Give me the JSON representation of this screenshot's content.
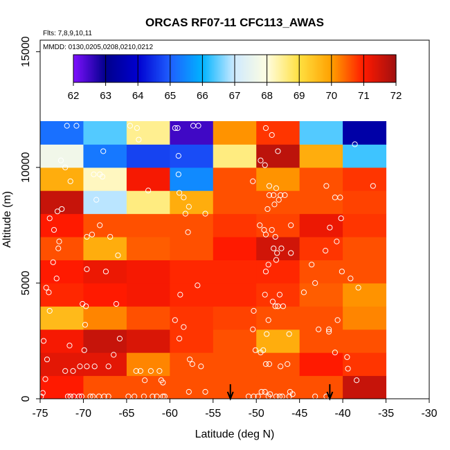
{
  "chart_data": {
    "type": "heatmap",
    "title": "ORCAS RF07-11 CFC113_AWAS",
    "flights_label": "Flts: 7,8,9,10,11",
    "dates_label": "MMDD: 0130,0205,0208,0210,0212",
    "xlabel": "Latitude (deg N)",
    "ylabel": "Altitude (m)",
    "xlim": [
      -75,
      -30
    ],
    "ylim": [
      0,
      15500
    ],
    "x_ticks": [
      -75,
      -70,
      -65,
      -60,
      -55,
      -50,
      -45,
      -40,
      -35,
      -30
    ],
    "x_tick_labels": [
      "-75",
      "-70",
      "-65",
      "-60",
      "-55",
      "-50",
      "-45",
      "-40",
      "-35",
      "-30"
    ],
    "y_ticks": [
      0,
      5000,
      10000,
      15000
    ],
    "y_tick_labels": [
      "0",
      "5000",
      "10000",
      "15000"
    ],
    "colorbar": {
      "min": 62,
      "max": 72,
      "ticks": [
        62,
        63,
        64,
        65,
        66,
        67,
        68,
        69,
        70,
        71,
        72
      ],
      "tick_labels": [
        "62",
        "63",
        "64",
        "65",
        "66",
        "67",
        "68",
        "69",
        "70",
        "71",
        "72"
      ],
      "stops": [
        "#7f10ff",
        "#00008b",
        "#0000d0",
        "#1f5fff",
        "#00b4ff",
        "#cfeaff",
        "#fffde0",
        "#ffe040",
        "#ffa000",
        "#ff1a00",
        "#a01010"
      ]
    },
    "lat_bins": [
      -75,
      -70,
      -65,
      -60,
      -55,
      -50,
      -45,
      -40,
      -35
    ],
    "alt_bins": [
      0,
      1000,
      2000,
      3000,
      4000,
      5000,
      6000,
      7000,
      8000,
      9000,
      10000,
      11000,
      12000
    ],
    "grid_values": [
      [
        71.0,
        70.6,
        70.6,
        70.6,
        70.6,
        70.6,
        70.6,
        71.6
      ],
      [
        71.3,
        71.3,
        70.2,
        70.6,
        70.6,
        70.6,
        71.0,
        70.8
      ],
      [
        71.1,
        71.6,
        71.4,
        70.8,
        70.6,
        69.8,
        70.6,
        70.6
      ],
      [
        69.6,
        70.2,
        70.6,
        70.8,
        70.7,
        70.6,
        70.6,
        70.2
      ],
      [
        70.9,
        71.0,
        71.1,
        70.9,
        70.9,
        70.8,
        70.5,
        70.1
      ],
      [
        71.0,
        71.2,
        71.1,
        70.9,
        70.9,
        70.9,
        70.6,
        70.6
      ],
      [
        70.6,
        69.8,
        70.5,
        70.6,
        71.0,
        71.5,
        70.8,
        70.6
      ],
      [
        71.0,
        70.6,
        70.6,
        70.6,
        70.8,
        70.7,
        71.2,
        70.8
      ],
      [
        71.6,
        66.9,
        68.6,
        69.8,
        70.6,
        70.6,
        70.6,
        70.7
      ],
      [
        69.8,
        68.2,
        71.1,
        65.5,
        70.6,
        70.1,
        70.6,
        70.8
      ],
      [
        67.7,
        65.3,
        64.7,
        64.8,
        68.6,
        71.7,
        69.8,
        66.3
      ],
      [
        65.2,
        66.4,
        68.5,
        62.5,
        70.1,
        70.8,
        66.4,
        63.4
      ]
    ],
    "observations": [
      [
        -74.9,
        100
      ],
      [
        -74.7,
        250
      ],
      [
        -74.4,
        850
      ],
      [
        -74.2,
        1700
      ],
      [
        -74.6,
        2500
      ],
      [
        -73.9,
        3800
      ],
      [
        -74.0,
        4600
      ],
      [
        -74.3,
        4800
      ],
      [
        -73.1,
        5200
      ],
      [
        -73.5,
        5900
      ],
      [
        -72.9,
        6500
      ],
      [
        -73.4,
        7300
      ],
      [
        -72.8,
        6800
      ],
      [
        -73.9,
        7800
      ],
      [
        -72.5,
        8200
      ],
      [
        -73.0,
        8100
      ],
      [
        -71.5,
        9400
      ],
      [
        -72.1,
        10000
      ],
      [
        -72.6,
        10300
      ],
      [
        -70.8,
        11800
      ],
      [
        -71.9,
        11800
      ],
      [
        -71.5,
        100
      ],
      [
        -71.8,
        100
      ],
      [
        -71.1,
        100
      ],
      [
        -70.5,
        100
      ],
      [
        -70.2,
        100
      ],
      [
        -69.2,
        100
      ],
      [
        -68.9,
        100
      ],
      [
        -68.2,
        100
      ],
      [
        -67.6,
        100
      ],
      [
        -67.1,
        100
      ],
      [
        -72.1,
        1200
      ],
      [
        -71.2,
        1200
      ],
      [
        -70.4,
        1400
      ],
      [
        -69.6,
        1400
      ],
      [
        -68.7,
        1400
      ],
      [
        -67.1,
        1400
      ],
      [
        -66.5,
        1900
      ],
      [
        -71.6,
        2300
      ],
      [
        -69.9,
        2100
      ],
      [
        -65.8,
        2600
      ],
      [
        -69.8,
        3200
      ],
      [
        -70.1,
        4100
      ],
      [
        -69.7,
        4000
      ],
      [
        -66.2,
        4100
      ],
      [
        -67.4,
        5500
      ],
      [
        -69.6,
        5600
      ],
      [
        -66.9,
        7000
      ],
      [
        -69.6,
        7000
      ],
      [
        -68.1,
        7500
      ],
      [
        -69.0,
        7100
      ],
      [
        -66.0,
        6200
      ],
      [
        -67.8,
        9600
      ],
      [
        -68.8,
        9700
      ],
      [
        -68.1,
        9700
      ],
      [
        -68.5,
        8600
      ],
      [
        -67.7,
        10700
      ],
      [
        -64.8,
        100
      ],
      [
        -64.1,
        100
      ],
      [
        -63.0,
        100
      ],
      [
        -62.0,
        100
      ],
      [
        -61.5,
        100
      ],
      [
        -60.8,
        100
      ],
      [
        -60.6,
        100
      ],
      [
        -63.4,
        1200
      ],
      [
        -63.9,
        1200
      ],
      [
        -61.2,
        1200
      ],
      [
        -62.2,
        1200
      ],
      [
        -62.9,
        800
      ],
      [
        -61.0,
        800
      ],
      [
        -60.8,
        700
      ],
      [
        -62.5,
        9000
      ],
      [
        -64.6,
        11800
      ],
      [
        -63.8,
        11700
      ],
      [
        -63.6,
        11200
      ],
      [
        -59.4,
        3400
      ],
      [
        -58.4,
        3100
      ],
      [
        -58.9,
        2600
      ],
      [
        -57.7,
        1700
      ],
      [
        -57.4,
        1500
      ],
      [
        -56.4,
        1400
      ],
      [
        -58.8,
        4500
      ],
      [
        -56.8,
        4900
      ],
      [
        -57.9,
        7200
      ],
      [
        -58.2,
        8000
      ],
      [
        -58.4,
        8700
      ],
      [
        -58.9,
        8900
      ],
      [
        -57.8,
        8300
      ],
      [
        -59.0,
        9700
      ],
      [
        -59.0,
        10500
      ],
      [
        -59.4,
        11700
      ],
      [
        -59.1,
        11700
      ],
      [
        -57.3,
        11800
      ],
      [
        -56.7,
        11800
      ],
      [
        -55.9,
        8000
      ],
      [
        -57.8,
        300
      ],
      [
        -55.9,
        300
      ],
      [
        -50.9,
        100
      ],
      [
        -50.3,
        100
      ],
      [
        -49.8,
        100
      ],
      [
        -49.4,
        300
      ],
      [
        -49.0,
        300
      ],
      [
        -48.6,
        100
      ],
      [
        -48.4,
        200
      ],
      [
        -47.7,
        100
      ],
      [
        -47.3,
        100
      ],
      [
        -47.0,
        100
      ],
      [
        -46.2,
        100
      ],
      [
        -46.1,
        300
      ],
      [
        -45.8,
        200
      ],
      [
        -50.1,
        2100
      ],
      [
        -49.2,
        2100
      ],
      [
        -49.5,
        2000
      ],
      [
        -48.9,
        1500
      ],
      [
        -48.5,
        1500
      ],
      [
        -47.2,
        1400
      ],
      [
        -46.4,
        1500
      ],
      [
        -48.8,
        2800
      ],
      [
        -46.2,
        2800
      ],
      [
        -50.4,
        3000
      ],
      [
        -48.6,
        3400
      ],
      [
        -50.3,
        3800
      ],
      [
        -48.1,
        4200
      ],
      [
        -47.8,
        4000
      ],
      [
        -47.5,
        4000
      ],
      [
        -46.9,
        4000
      ],
      [
        -49.0,
        4500
      ],
      [
        -47.3,
        4500
      ],
      [
        -48.6,
        5800
      ],
      [
        -48.9,
        5500
      ],
      [
        -47.7,
        6000
      ],
      [
        -47.6,
        6300
      ],
      [
        -48.0,
        6500
      ],
      [
        -47.1,
        6500
      ],
      [
        -49.6,
        7500
      ],
      [
        -49.1,
        7300
      ],
      [
        -48.9,
        7100
      ],
      [
        -47.8,
        7000
      ],
      [
        -48.2,
        7300
      ],
      [
        -46.0,
        7500
      ],
      [
        -46.0,
        6300
      ],
      [
        -48.7,
        8200
      ],
      [
        -47.9,
        8400
      ],
      [
        -47.4,
        8600
      ],
      [
        -48.5,
        8800
      ],
      [
        -48.0,
        8800
      ],
      [
        -47.2,
        8800
      ],
      [
        -46.7,
        8800
      ],
      [
        -50.4,
        9400
      ],
      [
        -47.7,
        9100
      ],
      [
        -48.5,
        9200
      ],
      [
        -47.5,
        10700
      ],
      [
        -49.5,
        10300
      ],
      [
        -49.0,
        10100
      ],
      [
        -48.9,
        11700
      ],
      [
        -48.2,
        11400
      ],
      [
        -44.5,
        4600
      ],
      [
        -43.6,
        5800
      ],
      [
        -43.2,
        5000
      ],
      [
        -42.8,
        3000
      ],
      [
        -41.6,
        3000
      ],
      [
        -41.6,
        2900
      ],
      [
        -40.6,
        3400
      ],
      [
        -40.9,
        2000
      ],
      [
        -39.5,
        1800
      ],
      [
        -39.4,
        1300
      ],
      [
        -38.4,
        800
      ],
      [
        -40.7,
        6800
      ],
      [
        -42.0,
        6400
      ],
      [
        -40.1,
        5500
      ],
      [
        -39.1,
        5200
      ],
      [
        -38.2,
        4800
      ],
      [
        -41.5,
        7400
      ],
      [
        -40.2,
        7800
      ],
      [
        -40.3,
        8700
      ],
      [
        -40.9,
        8700
      ],
      [
        -36.5,
        9200
      ],
      [
        -41.9,
        9200
      ],
      [
        -38.6,
        11000
      ],
      [
        -43.2,
        100
      ],
      [
        -41.9,
        100
      ]
    ],
    "arrows_at_lat": [
      -53,
      -41.5
    ]
  }
}
